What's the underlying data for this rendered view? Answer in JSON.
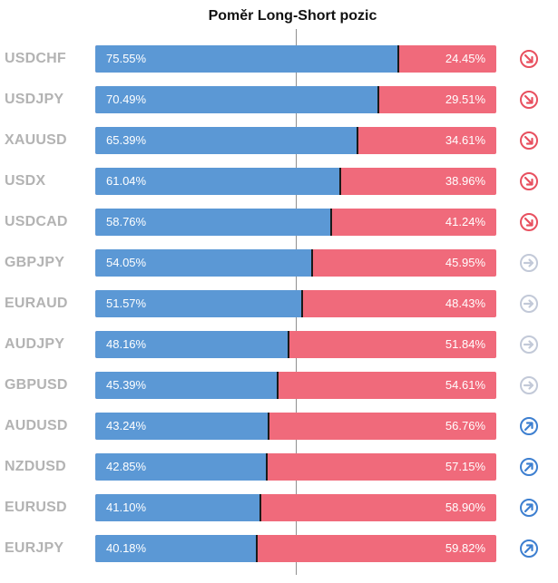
{
  "title": "Poměr Long-Short pozic",
  "colors": {
    "long": "#5b98d5",
    "short": "#f06a7b",
    "down": "#e8505f",
    "neutral": "#c2c9d8",
    "up": "#3d7fd0"
  },
  "chart_data": {
    "type": "bar",
    "title": "Poměr Long-Short pozic",
    "categories": [
      "USDCHF",
      "USDJPY",
      "XAUUSD",
      "USDX",
      "USDCAD",
      "GBPJPY",
      "EURAUD",
      "AUDJPY",
      "GBPUSD",
      "AUDUSD",
      "NZDUSD",
      "EURUSD",
      "EURJPY"
    ],
    "series": [
      {
        "values": [
          75.55,
          70.49,
          65.39,
          61.04,
          58.76,
          54.05,
          51.57,
          48.16,
          45.39,
          43.24,
          42.85,
          41.1,
          40.18
        ]
      },
      {
        "values": [
          24.45,
          29.51,
          34.61,
          38.96,
          41.24,
          45.95,
          48.43,
          51.84,
          54.61,
          56.76,
          57.15,
          58.9,
          59.82
        ]
      }
    ],
    "long_labels": [
      "75.55%",
      "70.49%",
      "65.39%",
      "61.04%",
      "58.76%",
      "54.05%",
      "51.57%",
      "48.16%",
      "45.39%",
      "43.24%",
      "42.85%",
      "41.10%",
      "40.18%"
    ],
    "short_labels": [
      "24.45%",
      "29.51%",
      "34.61%",
      "38.96%",
      "41.24%",
      "45.95%",
      "48.43%",
      "51.84%",
      "54.61%",
      "56.76%",
      "57.15%",
      "58.90%",
      "59.82%"
    ],
    "trend_icons": [
      "arrow-down-right-icon",
      "arrow-down-right-icon",
      "arrow-down-right-icon",
      "arrow-down-right-icon",
      "arrow-down-right-icon",
      "arrow-right-icon",
      "arrow-right-icon",
      "arrow-right-icon",
      "arrow-right-icon",
      "arrow-up-right-icon",
      "arrow-up-right-icon",
      "arrow-up-right-icon",
      "arrow-up-right-icon"
    ],
    "xlim": [
      0,
      100
    ],
    "stacked": true
  }
}
